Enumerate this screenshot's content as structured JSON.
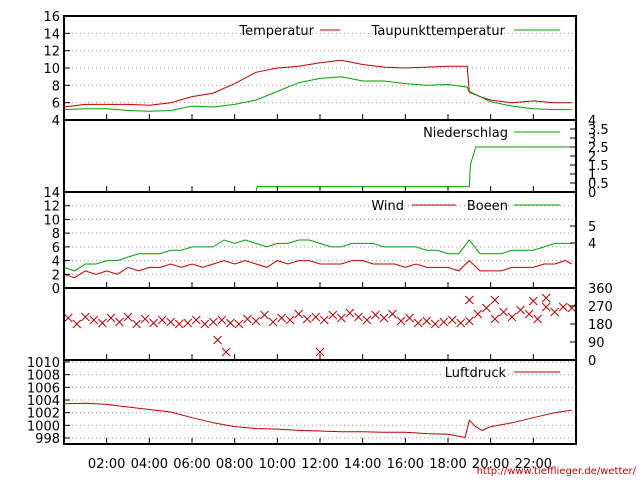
{
  "chart_data": [
    {
      "type": "line",
      "panel": "temperature",
      "ylim": [
        4,
        16
      ],
      "yticks": [
        "16",
        "14",
        "12",
        "10",
        "8",
        "6",
        "4"
      ],
      "grid": true,
      "legend_position": "top",
      "series": [
        {
          "name": "Temperatur",
          "color": "#c00000",
          "x": [
            0,
            1,
            2,
            3,
            4,
            5,
            6,
            7,
            8,
            9,
            10,
            11,
            12,
            13,
            14,
            15,
            16,
            17,
            18,
            18.9,
            19,
            19.5,
            20,
            21,
            22,
            23,
            23.8
          ],
          "values": [
            5.5,
            5.8,
            5.8,
            5.8,
            5.7,
            6,
            6.7,
            7.1,
            8.2,
            9.5,
            10,
            10.2,
            10.6,
            10.9,
            10.4,
            10.1,
            10,
            10.1,
            10.2,
            10.2,
            7.3,
            6.7,
            6.3,
            6,
            6.2,
            6,
            6
          ]
        },
        {
          "name": "Taupunkttemperatur",
          "color": "#00a000",
          "x": [
            0,
            1,
            2,
            3,
            4,
            5,
            6,
            7,
            8,
            9,
            10,
            11,
            12,
            13,
            14,
            15,
            16,
            17,
            18,
            18.9,
            19,
            19.5,
            20,
            21,
            22,
            23,
            23.8
          ],
          "values": [
            5.2,
            5.3,
            5.3,
            5.1,
            5.0,
            5.1,
            5.6,
            5.5,
            5.8,
            6.3,
            7.3,
            8.3,
            8.8,
            9.0,
            8.5,
            8.5,
            8.2,
            8.0,
            8.1,
            7.8,
            7.2,
            6.7,
            6.1,
            5.6,
            5.3,
            5.2,
            5.2
          ]
        }
      ]
    },
    {
      "type": "line",
      "panel": "precipitation",
      "ylim": [
        0,
        4
      ],
      "yticks_right": [
        "4",
        "3.5",
        "3",
        "2.5",
        "2",
        "1.5",
        "1",
        "0.5",
        "0"
      ],
      "series": [
        {
          "name": "Niederschlag",
          "color": "#00a000",
          "x": [
            0,
            9,
            9.05,
            19,
            19.05,
            19.3,
            19.35,
            23.8
          ],
          "values": [
            0,
            0,
            0.3,
            0.3,
            1.5,
            2.5,
            2.5,
            2.5
          ]
        }
      ]
    },
    {
      "type": "line",
      "panel": "wind",
      "ylim": [
        0,
        14
      ],
      "yticks": [
        "14",
        "12",
        "10",
        "8",
        "6",
        "4",
        "2",
        "0"
      ],
      "yticks_right": [
        "5",
        "4"
      ],
      "series": [
        {
          "name": "Wind",
          "color": "#c00000",
          "x": [
            0,
            0.5,
            1,
            1.5,
            2,
            2.5,
            3,
            3.5,
            4,
            4.5,
            5,
            5.5,
            6,
            6.5,
            7,
            7.5,
            8,
            8.5,
            9,
            9.5,
            10,
            10.5,
            11,
            11.5,
            12,
            12.5,
            13,
            13.5,
            14,
            14.5,
            15,
            15.5,
            16,
            16.5,
            17,
            17.5,
            18,
            18.5,
            19,
            19.5,
            20,
            20.5,
            21,
            21.5,
            22,
            22.5,
            23,
            23.5,
            23.8
          ],
          "values": [
            2,
            1.5,
            2.5,
            2,
            2.5,
            2,
            3,
            2.5,
            3,
            3,
            3.5,
            3,
            3.5,
            3,
            3.5,
            4,
            3.5,
            4,
            3.5,
            3,
            4,
            3.5,
            4,
            4,
            3.5,
            3.5,
            3.5,
            4,
            4,
            3.5,
            3.5,
            3.5,
            3,
            3.5,
            3,
            3,
            3,
            2.5,
            4,
            2.5,
            2.5,
            2.5,
            3,
            3,
            3,
            3.5,
            3.5,
            4,
            3.5
          ]
        },
        {
          "name": "Boeen",
          "color": "#00a000",
          "x": [
            0,
            0.5,
            1,
            1.5,
            2,
            2.5,
            3,
            3.5,
            4,
            4.5,
            5,
            5.5,
            6,
            6.5,
            7,
            7.5,
            8,
            8.5,
            9,
            9.5,
            10,
            10.5,
            11,
            11.5,
            12,
            12.5,
            13,
            13.5,
            14,
            14.5,
            15,
            15.5,
            16,
            16.5,
            17,
            17.5,
            18,
            18.5,
            19,
            19.5,
            20,
            20.5,
            21,
            21.5,
            22,
            22.5,
            23,
            23.5,
            23.8
          ],
          "values": [
            3,
            2.5,
            3.5,
            3.5,
            4,
            4,
            4.5,
            5,
            5,
            5,
            5.5,
            5.5,
            6,
            6,
            6,
            7,
            6.5,
            7,
            6.5,
            6,
            6.5,
            6.5,
            7,
            7,
            6.5,
            6,
            6,
            6.5,
            6.5,
            6.5,
            6,
            6,
            6,
            6,
            5.5,
            5.5,
            5,
            5,
            7,
            5,
            5,
            5,
            5.5,
            5.5,
            5.5,
            6,
            6.5,
            6.5,
            6.5
          ]
        }
      ]
    },
    {
      "type": "scatter",
      "panel": "wind-direction",
      "ylim": [
        0,
        360
      ],
      "yticks_right": [
        "360",
        "270",
        "180",
        "90",
        "0"
      ],
      "series": [
        {
          "color": "#c00000",
          "marker": "x",
          "x": [
            0.2,
            0.6,
            1.0,
            1.4,
            1.8,
            2.2,
            2.6,
            3.0,
            3.4,
            3.8,
            4.2,
            4.6,
            5.0,
            5.4,
            5.8,
            6.2,
            6.6,
            7.0,
            7.4,
            7.8,
            8.2,
            8.6,
            9.0,
            9.4,
            9.8,
            10.2,
            10.6,
            11.0,
            11.4,
            11.8,
            12.2,
            12.6,
            13.0,
            13.4,
            13.8,
            14.2,
            14.6,
            15.0,
            15.4,
            15.8,
            16.2,
            16.6,
            17.0,
            17.4,
            17.8,
            18.2,
            18.6,
            19.0,
            19.4,
            19.8,
            20.2,
            20.6,
            21.0,
            21.4,
            21.8,
            22.2,
            22.6,
            23.0,
            23.4,
            23.8,
            7.2,
            7.6,
            12.0,
            19.0,
            20.2,
            22.0,
            22.6
          ],
          "values": [
            210,
            180,
            215,
            200,
            185,
            210,
            190,
            215,
            180,
            205,
            185,
            200,
            190,
            180,
            185,
            200,
            180,
            190,
            200,
            185,
            180,
            205,
            195,
            225,
            190,
            210,
            200,
            230,
            205,
            215,
            200,
            225,
            210,
            235,
            215,
            200,
            225,
            210,
            230,
            195,
            210,
            185,
            195,
            180,
            190,
            200,
            185,
            195,
            230,
            260,
            205,
            240,
            215,
            250,
            230,
            205,
            265,
            240,
            265,
            260,
            100,
            40,
            40,
            300,
            300,
            295,
            310
          ]
        }
      ]
    },
    {
      "type": "line",
      "panel": "pressure",
      "ylim": [
        997,
        1010
      ],
      "yticks": [
        "1010",
        "1008",
        "1006",
        "1004",
        "1002",
        "1000",
        "998"
      ],
      "series": [
        {
          "name": "Luftdruck",
          "color": "#c00000",
          "x": [
            0,
            1,
            2,
            3,
            4,
            5,
            6,
            7,
            8,
            9,
            10,
            11,
            12,
            13,
            14,
            15,
            16,
            17,
            18,
            18.8,
            19,
            19.3,
            19.6,
            20,
            21,
            22,
            23,
            23.8
          ],
          "values": [
            1003.4,
            1003.5,
            1003.3,
            1002.9,
            1002.5,
            1002.1,
            1001.2,
            1000.4,
            999.8,
            999.5,
            999.4,
            999.2,
            999.1,
            999.0,
            999.0,
            998.9,
            998.9,
            998.7,
            998.6,
            998.1,
            1000.8,
            999.8,
            999.2,
            999.8,
            1000.4,
            1001.2,
            1002.0,
            1002.4
          ]
        }
      ]
    }
  ],
  "x_axis": {
    "range": [
      0,
      24
    ],
    "ticks": [
      {
        "x": 2,
        "label": "02:00"
      },
      {
        "x": 4,
        "label": "04:00"
      },
      {
        "x": 6,
        "label": "06:00"
      },
      {
        "x": 8,
        "label": "08:00"
      },
      {
        "x": 10,
        "label": "10:00"
      },
      {
        "x": 12,
        "label": "12:00"
      },
      {
        "x": 14,
        "label": "14:00"
      },
      {
        "x": 16,
        "label": "16:00"
      },
      {
        "x": 18,
        "label": "18:00"
      },
      {
        "x": 20,
        "label": "20:00"
      },
      {
        "x": 22,
        "label": "22:00"
      }
    ]
  },
  "footer_url": "http://www.tiefflieger.de/wetter/"
}
